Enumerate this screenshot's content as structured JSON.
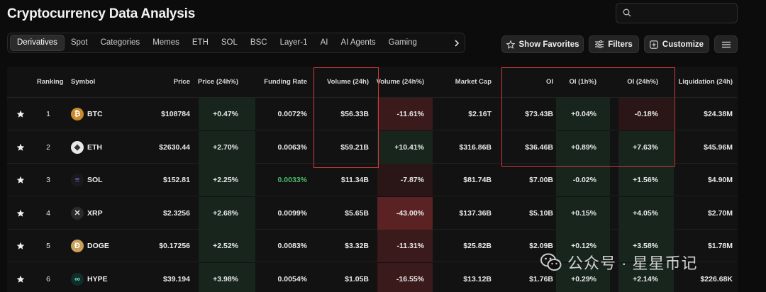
{
  "page": {
    "title": "Cryptocurrency Data Analysis"
  },
  "search": {
    "value": "",
    "placeholder": ""
  },
  "tabs": [
    {
      "label": "Derivatives",
      "active": true
    },
    {
      "label": "Spot"
    },
    {
      "label": "Categories"
    },
    {
      "label": "Memes"
    },
    {
      "label": "ETH"
    },
    {
      "label": "SOL"
    },
    {
      "label": "BSC"
    },
    {
      "label": "Layer-1"
    },
    {
      "label": "AI"
    },
    {
      "label": "AI Agents"
    },
    {
      "label": "Gaming"
    }
  ],
  "toolbar": {
    "favorites_label": "Show Favorites",
    "filters_label": "Filters",
    "customize_label": "Customize"
  },
  "columns": {
    "ranking": "Ranking",
    "symbol": "Symbol",
    "price": "Price",
    "price_change": "Price (24h%)",
    "funding_rate": "Funding Rate",
    "volume": "Volume (24h)",
    "volume_change": "Volume (24h%)",
    "market_cap": "Market Cap",
    "oi": "OI",
    "oi_1h": "OI (1h%)",
    "oi_24h": "OI (24h%)",
    "liquidation": "Liquidation (24h)"
  },
  "rows": [
    {
      "rank": "1",
      "symbol": "BTC",
      "price": "$108784",
      "price_change": "+0.47%",
      "funding_rate": "0.0072%",
      "volume": "$56.33B",
      "volume_change": "-11.61%",
      "market_cap": "$2.16T",
      "oi": "$73.43B",
      "oi_1h": "+0.04%",
      "oi_24h": "-0.18%",
      "liquidation": "$24.38M"
    },
    {
      "rank": "2",
      "symbol": "ETH",
      "price": "$2630.44",
      "price_change": "+2.70%",
      "funding_rate": "0.0063%",
      "volume": "$59.21B",
      "volume_change": "+10.41%",
      "market_cap": "$316.86B",
      "oi": "$36.46B",
      "oi_1h": "+0.89%",
      "oi_24h": "+7.63%",
      "liquidation": "$45.96M"
    },
    {
      "rank": "3",
      "symbol": "SOL",
      "price": "$152.81",
      "price_change": "+2.25%",
      "funding_rate": "0.0033%",
      "volume": "$11.34B",
      "volume_change": "-7.87%",
      "market_cap": "$81.74B",
      "oi": "$7.00B",
      "oi_1h": "-0.02%",
      "oi_24h": "+1.56%",
      "liquidation": "$4.90M"
    },
    {
      "rank": "4",
      "symbol": "XRP",
      "price": "$2.3256",
      "price_change": "+2.68%",
      "funding_rate": "0.0099%",
      "volume": "$5.65B",
      "volume_change": "-43.00%",
      "market_cap": "$137.36B",
      "oi": "$5.10B",
      "oi_1h": "+0.15%",
      "oi_24h": "+4.05%",
      "liquidation": "$2.70M"
    },
    {
      "rank": "5",
      "symbol": "DOGE",
      "price": "$0.17256",
      "price_change": "+2.52%",
      "funding_rate": "0.0083%",
      "volume": "$3.32B",
      "volume_change": "-11.31%",
      "market_cap": "$25.82B",
      "oi": "$2.09B",
      "oi_1h": "+0.12%",
      "oi_24h": "+3.58%",
      "liquidation": "$1.78M"
    },
    {
      "rank": "6",
      "symbol": "HYPE",
      "price": "$39.194",
      "price_change": "+3.98%",
      "funding_rate": "0.0054%",
      "volume": "$1.05B",
      "volume_change": "-16.55%",
      "market_cap": "$13.12B",
      "oi": "$1.76B",
      "oi_1h": "+0.29%",
      "oi_24h": "+2.14%",
      "liquidation": "$226.68K"
    }
  ],
  "watermark": {
    "text": "公众号 · 星星币记"
  },
  "colors": {
    "positive": "#4bbd6a",
    "highlight": "#d23a3a",
    "background": "#0c0c0c"
  }
}
